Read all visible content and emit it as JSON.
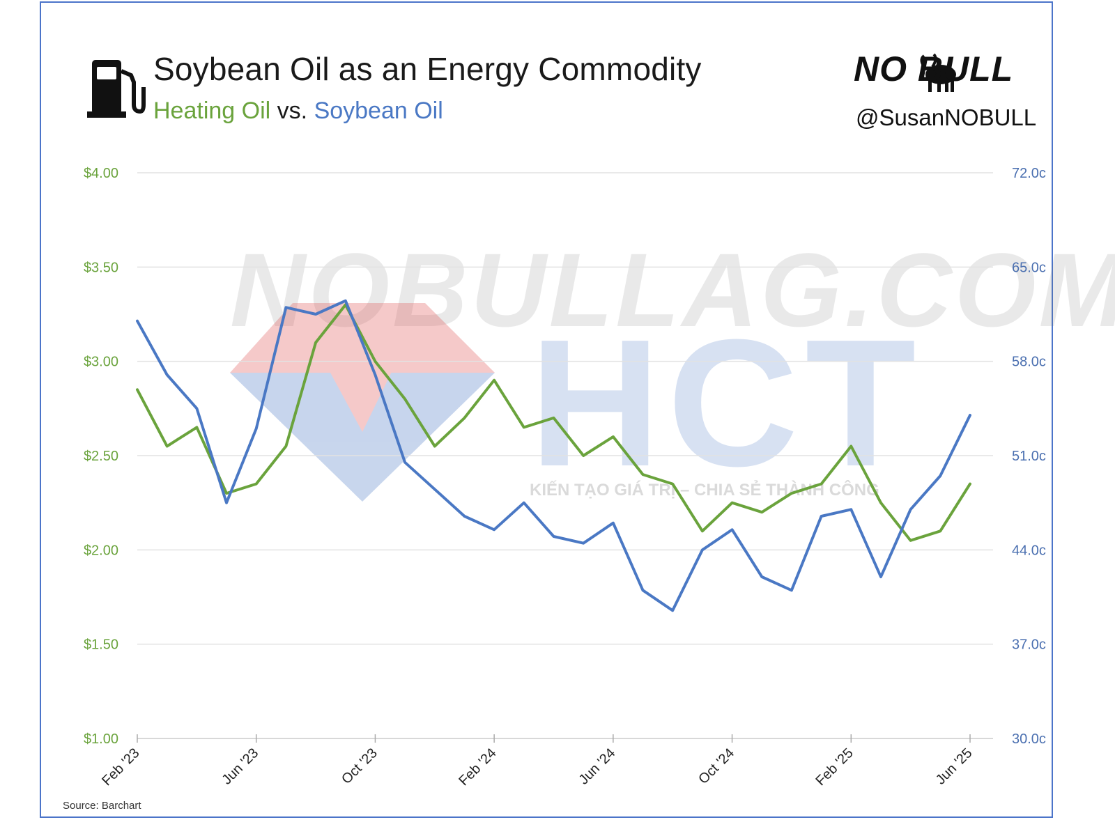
{
  "header": {
    "title": "Soybean Oil as an Energy Commodity",
    "subtitle_part1": "Heating Oil",
    "subtitle_vs": "vs.",
    "subtitle_part2": "Soybean Oil",
    "brand": "NO BULL",
    "handle": "@SusanNOBULL"
  },
  "watermark_text": "NOBULLAG.COM",
  "watermark2": {
    "text": "HCT",
    "tagline": "KIẾN TẠO GIÁ TRỊ – CHIA SẺ THÀNH CÔNG"
  },
  "source": "Source: Barchart",
  "icons": [
    "fuel-pump-icon",
    "bull-icon"
  ],
  "colors": {
    "green": "#6aa33c",
    "blue": "#4a78c4"
  },
  "chart_data": {
    "type": "line",
    "title": "Soybean Oil as an Energy Commodity",
    "grid": true,
    "x_ticks": [
      "Feb '23",
      "Jun '23",
      "Oct '23",
      "Feb '24",
      "Jun '24",
      "Oct '24",
      "Feb '25",
      "Jun '25"
    ],
    "x_range": [
      "2023-02",
      "2025-06"
    ],
    "y_left": {
      "ticks": [
        "$4.00",
        "$3.50",
        "$3.00",
        "$2.50",
        "$2.00",
        "$1.50",
        "$1.00"
      ],
      "range": [
        1.0,
        4.0
      ]
    },
    "y_right": {
      "ticks": [
        "72.0c",
        "65.0c",
        "58.0c",
        "51.0c",
        "44.0c",
        "37.0c",
        "30.0c"
      ],
      "range": [
        30.0,
        72.0
      ]
    },
    "series": [
      {
        "name": "Heating Oil",
        "axis": "left",
        "color": "#6aa33c",
        "x": [
          "2023-02",
          "2023-03",
          "2023-04",
          "2023-05",
          "2023-06",
          "2023-07",
          "2023-08",
          "2023-09",
          "2023-10",
          "2023-11",
          "2023-12",
          "2024-01",
          "2024-02",
          "2024-03",
          "2024-04",
          "2024-05",
          "2024-06",
          "2024-07",
          "2024-08",
          "2024-09",
          "2024-10",
          "2024-11",
          "2024-12",
          "2025-01",
          "2025-02",
          "2025-03",
          "2025-04",
          "2025-05",
          "2025-06"
        ],
        "values": [
          2.85,
          2.55,
          2.65,
          2.3,
          2.35,
          2.55,
          3.1,
          3.3,
          3.0,
          2.8,
          2.55,
          2.7,
          2.9,
          2.65,
          2.7,
          2.5,
          2.6,
          2.4,
          2.35,
          2.1,
          2.25,
          2.2,
          2.3,
          2.35,
          2.55,
          2.25,
          2.05,
          2.1,
          2.35
        ]
      },
      {
        "name": "Soybean Oil",
        "axis": "right",
        "color": "#4a78c4",
        "x": [
          "2023-02",
          "2023-03",
          "2023-04",
          "2023-05",
          "2023-06",
          "2023-07",
          "2023-08",
          "2023-09",
          "2023-10",
          "2023-11",
          "2023-12",
          "2024-01",
          "2024-02",
          "2024-03",
          "2024-04",
          "2024-05",
          "2024-06",
          "2024-07",
          "2024-08",
          "2024-09",
          "2024-10",
          "2024-11",
          "2024-12",
          "2025-01",
          "2025-02",
          "2025-03",
          "2025-04",
          "2025-05",
          "2025-06"
        ],
        "values": [
          61.0,
          57.0,
          54.5,
          47.5,
          53.0,
          62.0,
          61.5,
          62.5,
          57.0,
          50.5,
          48.5,
          46.5,
          45.5,
          47.5,
          45.0,
          44.5,
          46.0,
          41.0,
          39.5,
          44.0,
          45.5,
          42.0,
          41.0,
          46.5,
          47.0,
          42.0,
          47.0,
          49.5,
          54.0
        ]
      }
    ]
  }
}
